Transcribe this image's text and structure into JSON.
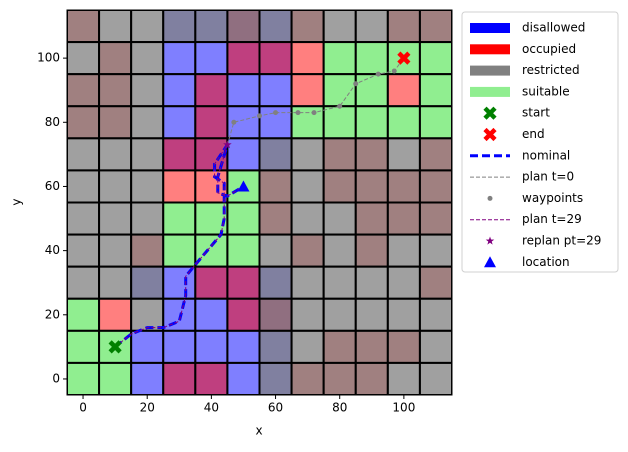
{
  "chart_data": {
    "type": "map",
    "x_label": "x",
    "y_label": "y",
    "xlim": [
      -5,
      115
    ],
    "ylim": [
      -5,
      115
    ],
    "xticks": [
      0,
      20,
      40,
      60,
      80,
      100
    ],
    "yticks": [
      0,
      20,
      40,
      60,
      80,
      100
    ],
    "cell_x": [
      0,
      10,
      20,
      30,
      40,
      50,
      60,
      70,
      80,
      90,
      100,
      110
    ],
    "cell_y": [
      110,
      100,
      90,
      80,
      70,
      60,
      50,
      40,
      30,
      20,
      10,
      0
    ],
    "regions": [
      {
        "name": "disallowed",
        "color": "#0000ff",
        "alpha": 0.5
      },
      {
        "name": "occupied",
        "color": "#ff0000",
        "alpha": 0.5
      },
      {
        "name": "restricted",
        "color": "#808080",
        "alpha": 0.75
      },
      {
        "name": "suitable",
        "color": "#90ee90",
        "alpha": 1
      }
    ],
    "cells": [
      [
        [
          1,
          2
        ],
        [
          2
        ],
        [
          2
        ],
        [
          0,
          2
        ],
        [
          0,
          2
        ],
        [
          0,
          1,
          2
        ],
        [
          0,
          2
        ],
        [
          1,
          2
        ],
        [
          2
        ],
        [
          2
        ],
        [
          1,
          2
        ],
        [
          1,
          2
        ]
      ],
      [
        [
          2
        ],
        [
          1,
          2
        ],
        [
          2
        ],
        [
          0
        ],
        [
          0
        ],
        [
          0,
          1
        ],
        [
          0,
          1
        ],
        [
          1
        ],
        [
          3
        ],
        [
          3
        ],
        [
          3
        ],
        [
          3
        ]
      ],
      [
        [
          1,
          2
        ],
        [
          1,
          2
        ],
        [
          2
        ],
        [
          0
        ],
        [
          0,
          1
        ],
        [
          0
        ],
        [
          0
        ],
        [
          1
        ],
        [
          3
        ],
        [
          3
        ],
        [
          1
        ],
        [
          3
        ]
      ],
      [
        [
          1,
          2
        ],
        [
          1,
          2
        ],
        [
          2
        ],
        [
          0
        ],
        [
          0,
          1
        ],
        [
          0
        ],
        [
          0
        ],
        [
          3
        ],
        [
          3
        ],
        [
          3
        ],
        [
          3
        ],
        [
          3
        ]
      ],
      [
        [
          2
        ],
        [
          2
        ],
        [
          2
        ],
        [
          0,
          1
        ],
        [
          0,
          1
        ],
        [
          0
        ],
        [
          0,
          2
        ],
        [
          2
        ],
        [
          1,
          2
        ],
        [
          1,
          2
        ],
        [
          2
        ],
        [
          1,
          2
        ]
      ],
      [
        [
          2
        ],
        [
          2
        ],
        [
          2
        ],
        [
          1
        ],
        [
          1
        ],
        [
          3
        ],
        [
          1,
          2
        ],
        [
          2
        ],
        [
          1,
          2
        ],
        [
          1,
          2
        ],
        [
          1,
          2
        ],
        [
          1,
          2
        ]
      ],
      [
        [
          2
        ],
        [
          2
        ],
        [
          2
        ],
        [
          3
        ],
        [
          3
        ],
        [
          3
        ],
        [
          1,
          2
        ],
        [
          2
        ],
        [
          2
        ],
        [
          1,
          2
        ],
        [
          1,
          2
        ],
        [
          1,
          2
        ]
      ],
      [
        [
          2
        ],
        [
          2
        ],
        [
          1,
          2
        ],
        [
          3
        ],
        [
          3
        ],
        [
          3
        ],
        [
          2
        ],
        [
          1,
          2
        ],
        [
          2
        ],
        [
          1,
          2
        ],
        [
          2
        ],
        [
          2
        ]
      ],
      [
        [
          2
        ],
        [
          2
        ],
        [
          0,
          2
        ],
        [
          0
        ],
        [
          0,
          1
        ],
        [
          0,
          1
        ],
        [
          0,
          2
        ],
        [
          2
        ],
        [
          2
        ],
        [
          2
        ],
        [
          2
        ],
        [
          1,
          2
        ]
      ],
      [
        [
          3
        ],
        [
          1
        ],
        [
          2
        ],
        [
          0
        ],
        [
          0
        ],
        [
          0,
          1
        ],
        [
          0,
          1,
          2
        ],
        [
          2
        ],
        [
          2
        ],
        [
          2
        ],
        [
          2
        ],
        [
          2
        ]
      ],
      [
        [
          3
        ],
        [
          3
        ],
        [
          0
        ],
        [
          0
        ],
        [
          0
        ],
        [
          0
        ],
        [
          0,
          2
        ],
        [
          2
        ],
        [
          1,
          2
        ],
        [
          1,
          2
        ],
        [
          1,
          2
        ],
        [
          2
        ]
      ],
      [
        [
          3
        ],
        [
          3
        ],
        [
          0
        ],
        [
          0,
          1
        ],
        [
          0,
          1
        ],
        [
          0
        ],
        [
          0,
          2
        ],
        [
          1,
          2
        ],
        [
          1,
          2
        ],
        [
          1,
          2
        ],
        [
          2
        ],
        [
          2
        ]
      ]
    ],
    "series": [
      {
        "name": "start",
        "kind": "marker",
        "marker": "x",
        "color": "#008000",
        "x": [
          10
        ],
        "y": [
          10
        ]
      },
      {
        "name": "end",
        "kind": "marker",
        "marker": "x",
        "color": "#ff0000",
        "x": [
          100
        ],
        "y": [
          100
        ]
      },
      {
        "name": "nominal",
        "kind": "line",
        "dash": "8,4",
        "width": 3,
        "color": "#0000ff",
        "x": [
          10,
          15,
          20,
          25,
          30,
          32,
          32,
          37,
          43,
          44,
          44,
          44,
          41,
          41,
          45,
          42,
          42,
          45,
          50
        ],
        "y": [
          10,
          14,
          16,
          16,
          18,
          26,
          32,
          38,
          45,
          50,
          56,
          61,
          63,
          67,
          73,
          63,
          58,
          57,
          60
        ]
      },
      {
        "name": "plan t=0",
        "kind": "line",
        "dash": "4,2",
        "width": 1,
        "color": "#808080",
        "x": [
          45,
          47,
          55,
          60,
          67,
          72,
          80,
          85,
          92,
          97,
          100
        ],
        "y": [
          73,
          80,
          82,
          83,
          83,
          83,
          85,
          92,
          95,
          96,
          100
        ]
      },
      {
        "name": "waypoints",
        "kind": "marker",
        "marker": "o",
        "color": "#808080",
        "x": [
          47,
          55,
          60,
          67,
          72,
          80,
          85,
          92,
          97
        ],
        "y": [
          80,
          82,
          83,
          83,
          83,
          85,
          92,
          95,
          96
        ]
      },
      {
        "name": "plan t=29",
        "kind": "line",
        "dash": "4,2",
        "width": 1,
        "color": "#800080",
        "x": [
          10,
          15,
          20,
          25,
          30,
          32,
          32,
          37,
          43,
          44,
          44,
          44,
          41,
          41,
          45,
          42,
          42,
          45,
          50
        ],
        "y": [
          10,
          14,
          16,
          16,
          18,
          26,
          32,
          38,
          45,
          50,
          56,
          61,
          63,
          67,
          73,
          63,
          58,
          57,
          60
        ]
      },
      {
        "name": "replan pt=29",
        "kind": "marker",
        "marker": "*",
        "color": "#800080",
        "x": [
          45
        ],
        "y": [
          73
        ]
      },
      {
        "name": "location",
        "kind": "marker",
        "marker": "^",
        "color": "#0000ff",
        "x": [
          50
        ],
        "y": [
          60
        ]
      }
    ]
  }
}
